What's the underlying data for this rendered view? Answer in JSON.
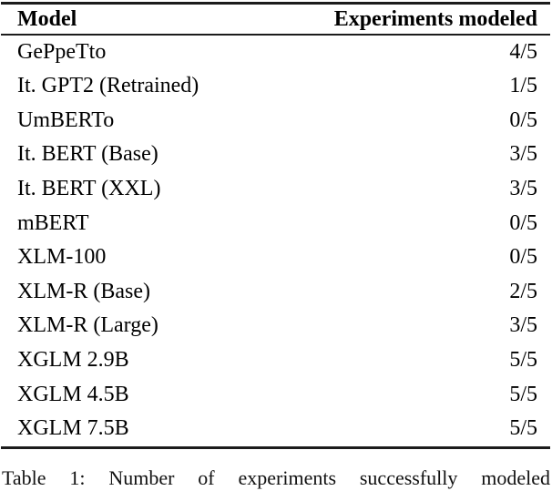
{
  "table": {
    "columns": [
      "Model",
      "Experiments modeled"
    ],
    "rows": [
      {
        "model": "GePpeTto",
        "score": "4/5"
      },
      {
        "model": "It. GPT2 (Retrained)",
        "score": "1/5"
      },
      {
        "model": "UmBERTo",
        "score": "0/5"
      },
      {
        "model": "It. BERT (Base)",
        "score": "3/5"
      },
      {
        "model": "It. BERT (XXL)",
        "score": "3/5"
      },
      {
        "model": "mBERT",
        "score": "0/5"
      },
      {
        "model": "XLM-100",
        "score": "0/5"
      },
      {
        "model": "XLM-R (Base)",
        "score": "2/5"
      },
      {
        "model": "XLM-R (Large)",
        "score": "3/5"
      },
      {
        "model": "XGLM 2.9B",
        "score": "5/5"
      },
      {
        "model": "XGLM 4.5B",
        "score": "5/5"
      },
      {
        "model": "XGLM 7.5B",
        "score": "5/5"
      }
    ]
  },
  "caption": "Table 1: Number of experiments successfully modeled",
  "colors": {
    "background": "#ffffff",
    "text": "#000000",
    "rule": "#1c1c1c"
  }
}
